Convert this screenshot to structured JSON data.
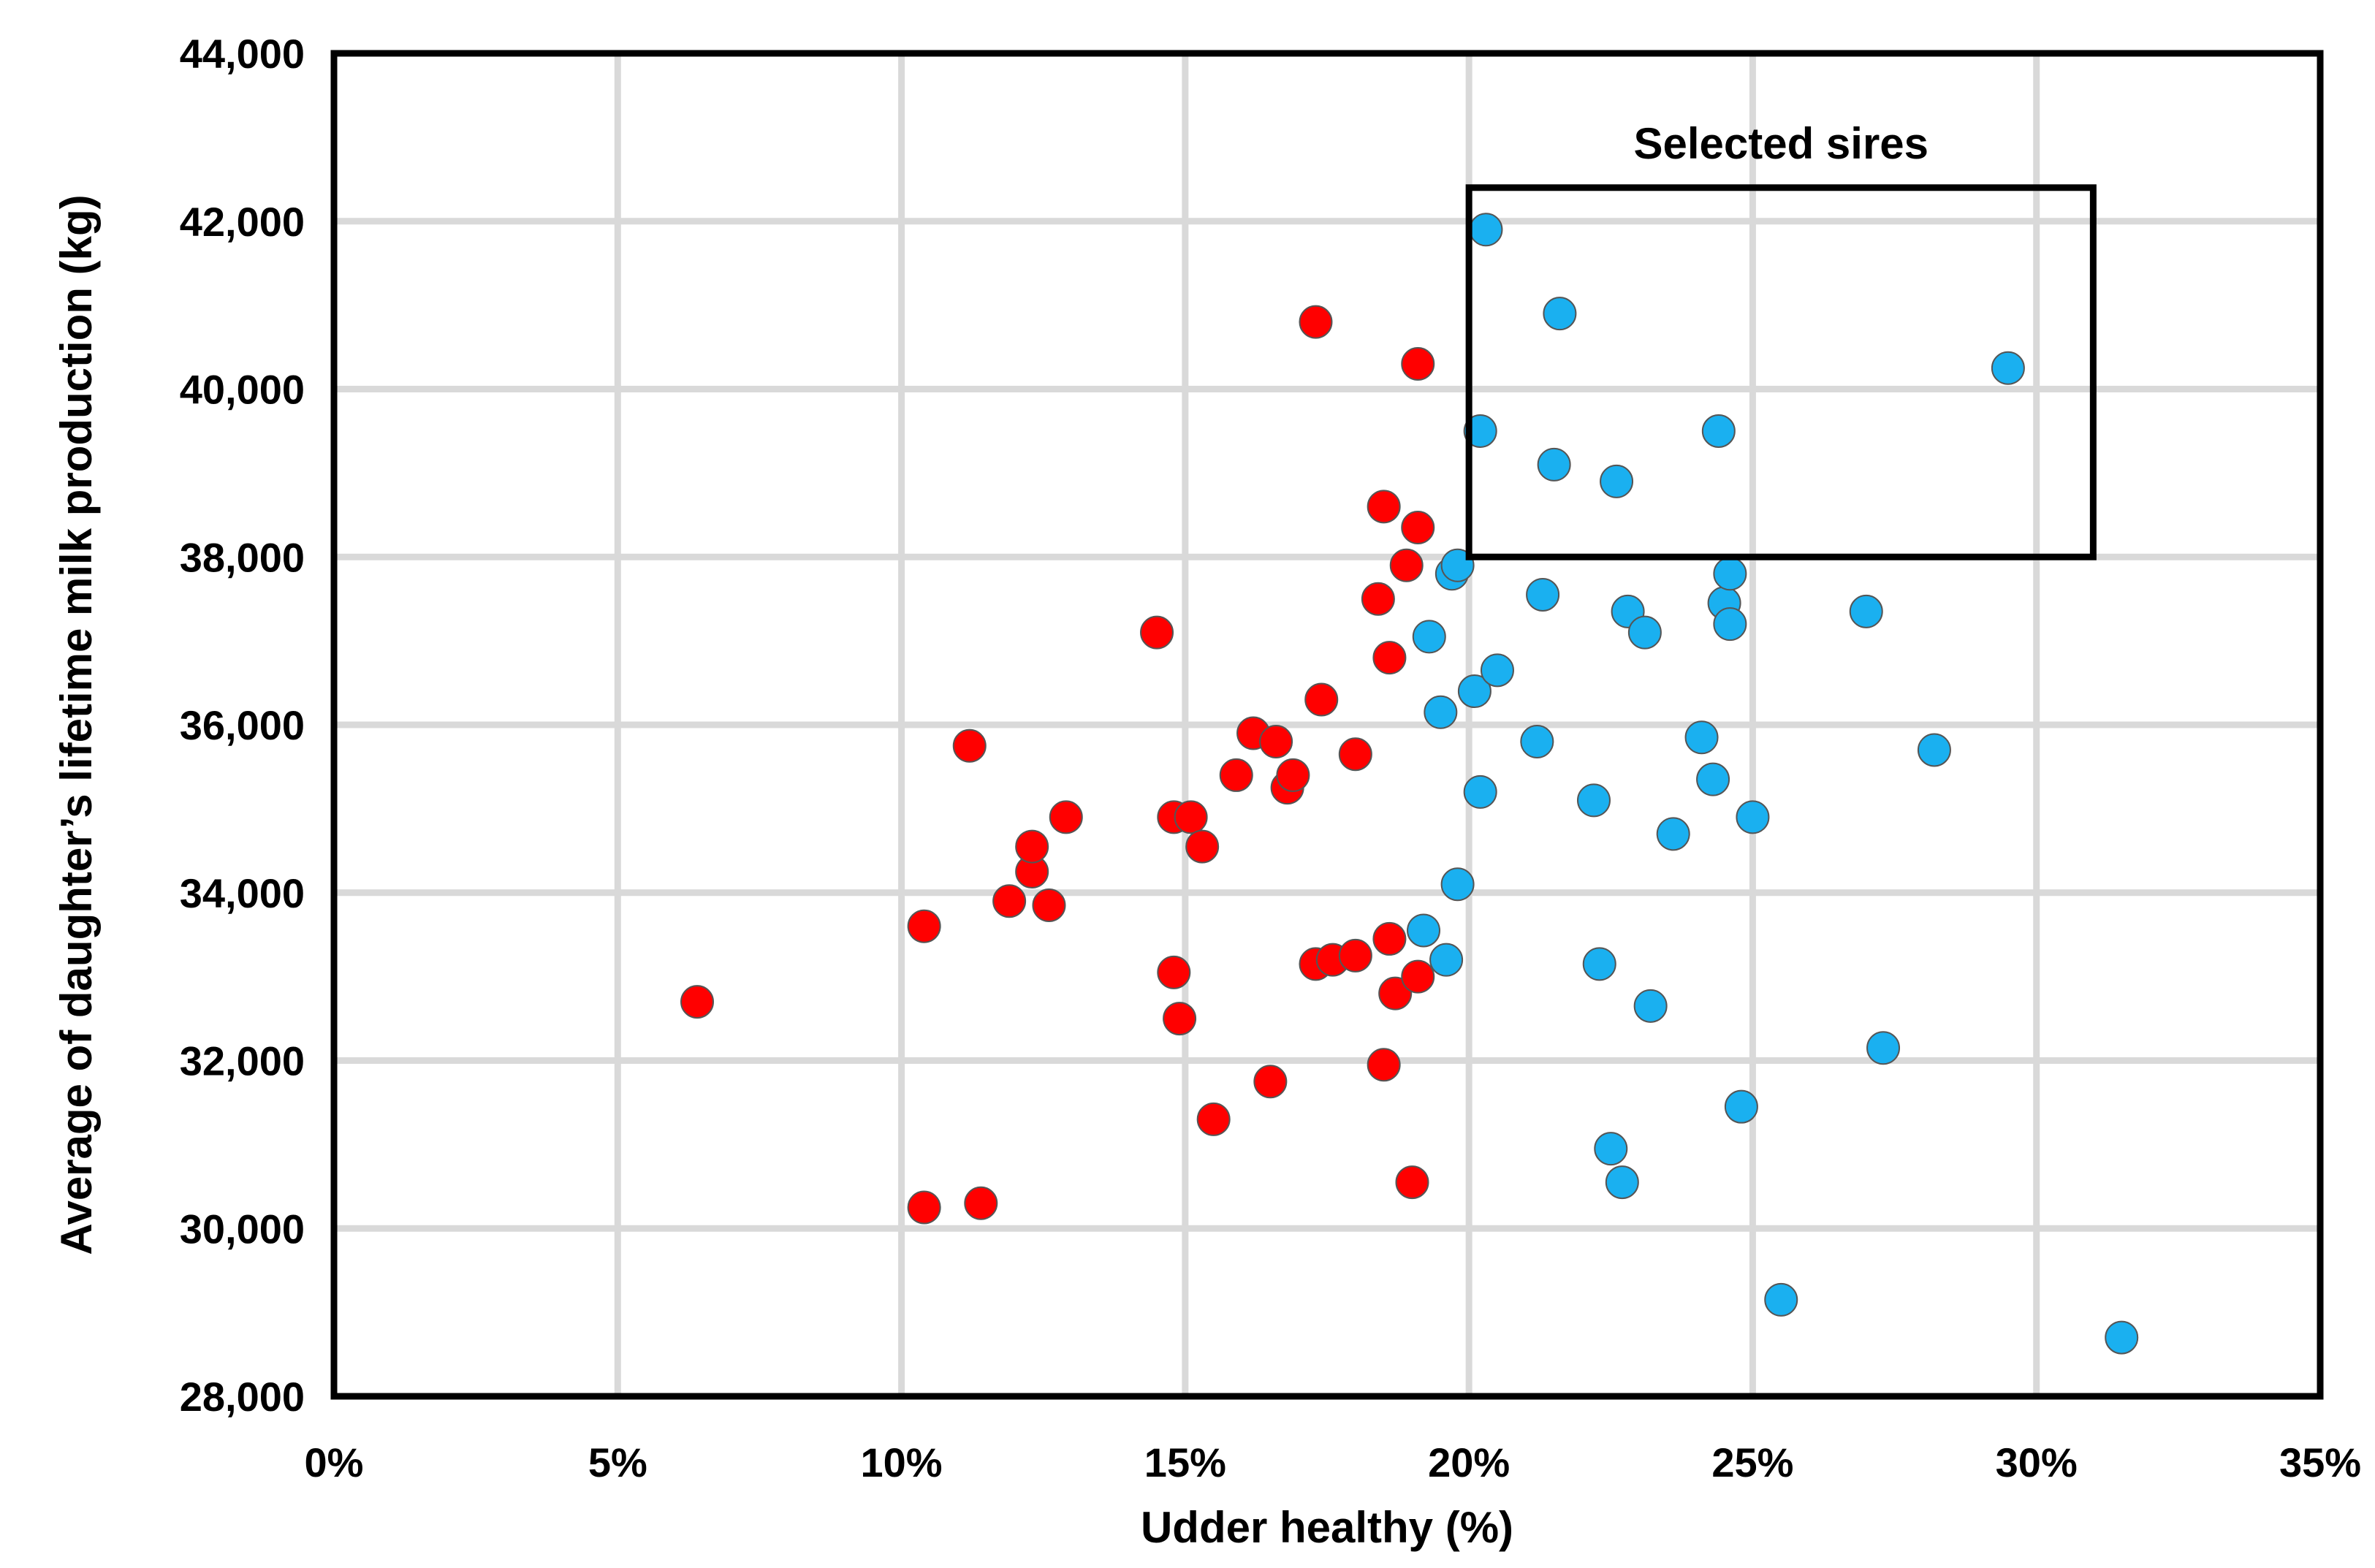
{
  "chart_data": {
    "type": "scatter",
    "title": "",
    "xlabel": "Udder healthy (%)",
    "ylabel": "Average of daughter’s lifetime milk production (kg)",
    "xlim": [
      0,
      35
    ],
    "ylim": [
      28000,
      44000
    ],
    "x_ticks": [
      0,
      5,
      10,
      15,
      20,
      25,
      30,
      35
    ],
    "x_tick_labels": [
      "0%",
      "5%",
      "10%",
      "15%",
      "20%",
      "25%",
      "30%",
      "35%"
    ],
    "y_ticks": [
      28000,
      30000,
      32000,
      34000,
      36000,
      38000,
      40000,
      42000,
      44000
    ],
    "y_tick_labels": [
      "28,000",
      "30,000",
      "32,000",
      "34,000",
      "36,000",
      "38,000",
      "40,000",
      "42,000",
      "44,000"
    ],
    "grid": true,
    "legend": "none",
    "annotation": {
      "text": "Selected sires",
      "box_x": [
        20,
        31
      ],
      "box_y": [
        38000,
        42400
      ]
    },
    "series": [
      {
        "color": "#ff0000",
        "points": [
          [
            6.4,
            32700
          ],
          [
            10.4,
            30250
          ],
          [
            10.4,
            33600
          ],
          [
            11.4,
            30300
          ],
          [
            11.2,
            35750
          ],
          [
            11.9,
            33900
          ],
          [
            12.3,
            34250
          ],
          [
            12.3,
            34550
          ],
          [
            12.6,
            33850
          ],
          [
            12.9,
            34900
          ],
          [
            14.5,
            37100
          ],
          [
            14.8,
            33050
          ],
          [
            14.8,
            34900
          ],
          [
            14.9,
            32500
          ],
          [
            15.1,
            34900
          ],
          [
            15.3,
            34550
          ],
          [
            15.5,
            31300
          ],
          [
            15.9,
            35400
          ],
          [
            16.2,
            35900
          ],
          [
            16.5,
            31750
          ],
          [
            16.6,
            35800
          ],
          [
            16.8,
            35250
          ],
          [
            16.9,
            35400
          ],
          [
            17.3,
            33150
          ],
          [
            17.3,
            40800
          ],
          [
            17.4,
            36300
          ],
          [
            17.6,
            33200
          ],
          [
            18.0,
            35650
          ],
          [
            18.0,
            33250
          ],
          [
            18.4,
            37500
          ],
          [
            18.5,
            38600
          ],
          [
            18.5,
            31950
          ],
          [
            18.6,
            36800
          ],
          [
            18.6,
            33450
          ],
          [
            18.7,
            32800
          ],
          [
            18.9,
            37900
          ],
          [
            19.0,
            30550
          ],
          [
            19.1,
            33000
          ],
          [
            19.1,
            38350
          ],
          [
            19.1,
            40300
          ]
        ]
      },
      {
        "color": "#1ab0f0",
        "points": [
          [
            19.2,
            33550
          ],
          [
            19.3,
            37050
          ],
          [
            19.5,
            36150
          ],
          [
            19.6,
            33200
          ],
          [
            19.7,
            37800
          ],
          [
            19.8,
            37900
          ],
          [
            19.8,
            34100
          ],
          [
            20.1,
            36400
          ],
          [
            20.2,
            35200
          ],
          [
            20.2,
            39500
          ],
          [
            20.3,
            41900
          ],
          [
            20.5,
            36650
          ],
          [
            21.2,
            35800
          ],
          [
            21.3,
            37550
          ],
          [
            21.5,
            39100
          ],
          [
            21.6,
            40900
          ],
          [
            22.2,
            35100
          ],
          [
            22.3,
            33150
          ],
          [
            22.5,
            30950
          ],
          [
            22.6,
            38900
          ],
          [
            22.7,
            30550
          ],
          [
            22.8,
            37350
          ],
          [
            23.1,
            37100
          ],
          [
            23.2,
            32650
          ],
          [
            23.6,
            34700
          ],
          [
            24.1,
            35850
          ],
          [
            24.3,
            35350
          ],
          [
            24.4,
            39500
          ],
          [
            24.5,
            37450
          ],
          [
            24.6,
            37800
          ],
          [
            24.6,
            37200
          ],
          [
            24.8,
            31450
          ],
          [
            25.0,
            34900
          ],
          [
            25.5,
            29150
          ],
          [
            27.0,
            37350
          ],
          [
            27.3,
            32150
          ],
          [
            28.2,
            35700
          ],
          [
            29.5,
            40250
          ],
          [
            31.5,
            28700
          ]
        ]
      }
    ]
  }
}
